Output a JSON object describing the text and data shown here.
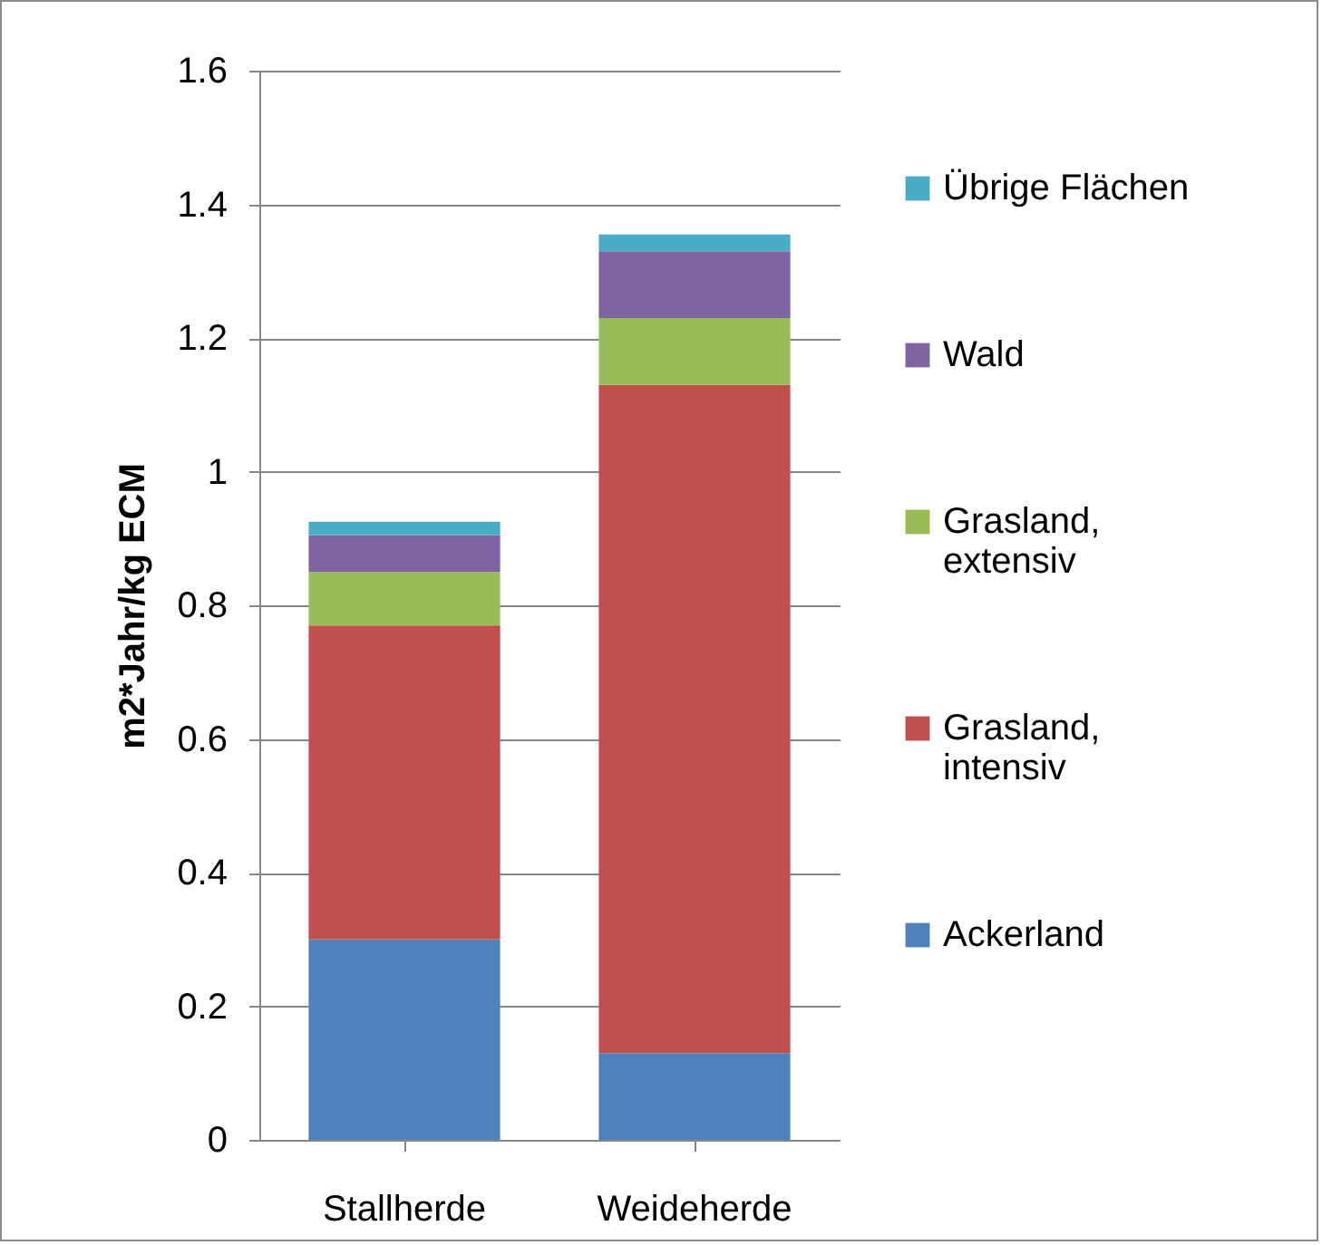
{
  "chart_data": {
    "type": "bar",
    "stacked": true,
    "ylabel": "m2*Jahr/kg ECM",
    "categories": [
      "Stallherde",
      "Weideherde"
    ],
    "series": [
      {
        "name": "Ackerland",
        "color": "#4f81bd",
        "values": [
          0.3,
          0.13
        ]
      },
      {
        "name": "Grasland, intensiv",
        "color": "#c0504d",
        "values": [
          0.47,
          1.0
        ]
      },
      {
        "name": "Grasland, extensiv",
        "color": "#9bbb59",
        "values": [
          0.08,
          0.1
        ]
      },
      {
        "name": "Wald",
        "color": "#8064a2",
        "values": [
          0.055,
          0.1
        ]
      },
      {
        "name": "Übrige Flächen",
        "color": "#4bacc6",
        "values": [
          0.02,
          0.025
        ]
      }
    ],
    "ylim": [
      0,
      1.6
    ],
    "yticks": [
      0,
      0.2,
      0.4,
      0.6,
      0.8,
      1,
      1.2,
      1.4,
      1.6
    ],
    "grid": "y",
    "legend": "right"
  }
}
